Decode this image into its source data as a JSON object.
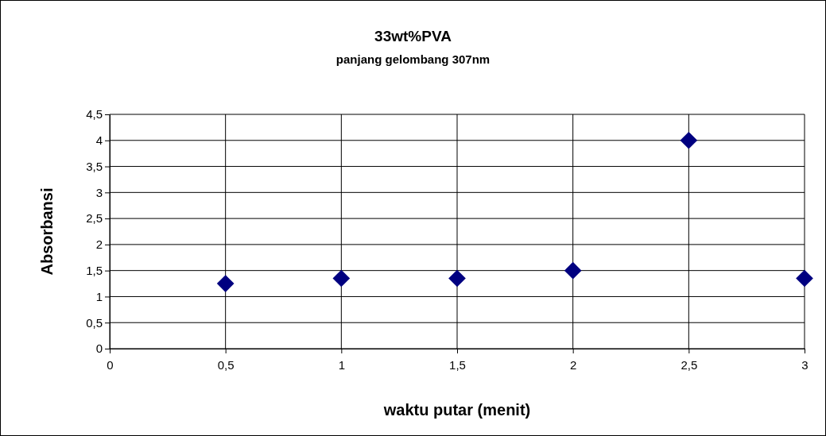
{
  "chart_data": {
    "type": "scatter",
    "title": "33wt%PVA",
    "subtitle": "panjang gelombang 307nm",
    "xlabel": "waktu putar (menit)",
    "ylabel": "Absorbansi",
    "x": [
      0.5,
      1,
      1.5,
      2,
      2.5,
      3
    ],
    "series": [
      {
        "color": "#000080",
        "values": [
          1.25,
          1.35,
          1.35,
          1.5,
          4,
          1.35
        ]
      }
    ],
    "xlim": [
      0,
      3
    ],
    "xticks": [
      0,
      {
        "value": 0.5,
        "label": "0,5"
      },
      1,
      {
        "value": 1.5,
        "label": "1,5"
      },
      2,
      {
        "value": 2.5,
        "label": "2,5"
      },
      3
    ],
    "ylim": [
      0,
      4.5
    ],
    "yticks": [
      0,
      {
        "value": 0.5,
        "label": "0,5"
      },
      1,
      {
        "value": 1.5,
        "label": "1,5"
      },
      2,
      {
        "value": 2.5,
        "label": "2,5"
      },
      3,
      {
        "value": 3.5,
        "label": "3,5"
      },
      4,
      {
        "value": 4.5,
        "label": "4,5"
      }
    ],
    "grid": true,
    "marker": "diamond"
  }
}
